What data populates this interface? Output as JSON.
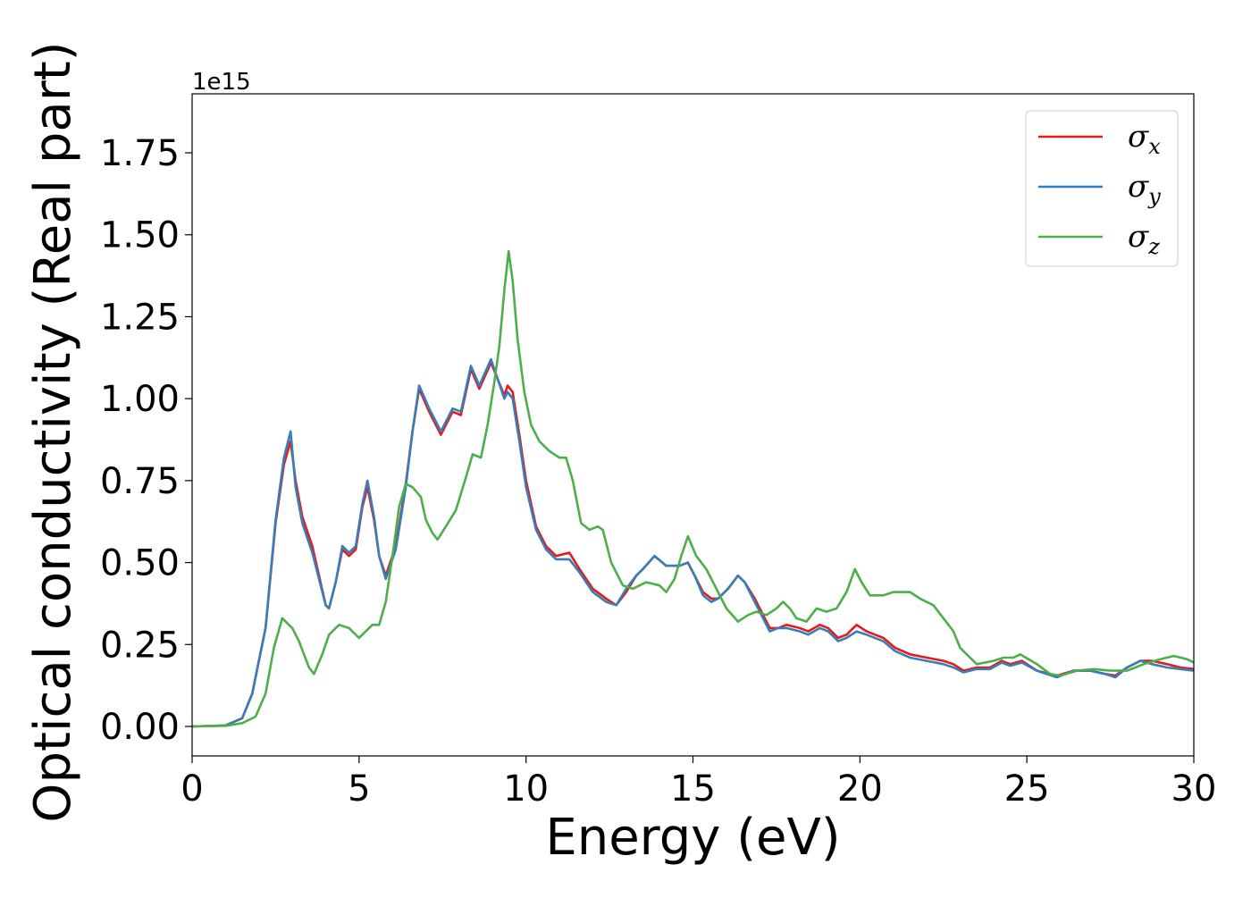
{
  "chart_data": {
    "type": "line",
    "xlabel": "Energy (eV)",
    "ylabel": "Optical conductivity (Real part)",
    "y_offset_text": "1e15",
    "xlim": [
      0,
      30
    ],
    "ylim": [
      -0.09,
      1.93
    ],
    "x_ticks": [
      0,
      5,
      10,
      15,
      20,
      25,
      30
    ],
    "x_tick_labels": [
      "0",
      "5",
      "10",
      "15",
      "20",
      "25",
      "30"
    ],
    "y_ticks": [
      0.0,
      0.25,
      0.5,
      0.75,
      1.0,
      1.25,
      1.5,
      1.75
    ],
    "y_tick_labels": [
      "0.00",
      "0.25",
      "0.50",
      "0.75",
      "1.00",
      "1.25",
      "1.50",
      "1.75"
    ],
    "grid": false,
    "legend_position": "top-right",
    "series": [
      {
        "name": "σx",
        "symbol": "σ",
        "subscript": "x",
        "color": "#e41a1c",
        "points": [
          [
            0,
            0
          ],
          [
            1.0,
            0.003
          ],
          [
            1.5,
            0.025
          ],
          [
            1.8,
            0.1
          ],
          [
            2.0,
            0.2
          ],
          [
            2.2,
            0.3
          ],
          [
            2.5,
            0.62
          ],
          [
            2.75,
            0.8
          ],
          [
            2.95,
            0.87
          ],
          [
            3.1,
            0.75
          ],
          [
            3.3,
            0.64
          ],
          [
            3.6,
            0.55
          ],
          [
            4.0,
            0.37
          ],
          [
            4.1,
            0.36
          ],
          [
            4.3,
            0.44
          ],
          [
            4.5,
            0.54
          ],
          [
            4.7,
            0.52
          ],
          [
            4.9,
            0.54
          ],
          [
            5.1,
            0.67
          ],
          [
            5.25,
            0.73
          ],
          [
            5.45,
            0.63
          ],
          [
            5.6,
            0.52
          ],
          [
            5.8,
            0.46
          ],
          [
            6.1,
            0.55
          ],
          [
            6.4,
            0.74
          ],
          [
            6.6,
            0.9
          ],
          [
            6.8,
            1.03
          ],
          [
            7.1,
            0.96
          ],
          [
            7.45,
            0.89
          ],
          [
            7.8,
            0.96
          ],
          [
            8.05,
            0.95
          ],
          [
            8.35,
            1.09
          ],
          [
            8.6,
            1.03
          ],
          [
            8.95,
            1.11
          ],
          [
            9.15,
            1.06
          ],
          [
            9.35,
            1.01
          ],
          [
            9.45,
            1.04
          ],
          [
            9.6,
            1.02
          ],
          [
            9.8,
            0.89
          ],
          [
            10.0,
            0.75
          ],
          [
            10.3,
            0.61
          ],
          [
            10.6,
            0.55
          ],
          [
            10.9,
            0.52
          ],
          [
            11.3,
            0.53
          ],
          [
            11.6,
            0.48
          ],
          [
            12.0,
            0.42
          ],
          [
            12.4,
            0.39
          ],
          [
            12.7,
            0.37
          ],
          [
            13.0,
            0.41
          ],
          [
            13.3,
            0.46
          ],
          [
            13.5,
            0.48
          ],
          [
            13.85,
            0.52
          ],
          [
            14.2,
            0.49
          ],
          [
            14.6,
            0.49
          ],
          [
            14.85,
            0.5
          ],
          [
            15.05,
            0.46
          ],
          [
            15.3,
            0.41
          ],
          [
            15.55,
            0.39
          ],
          [
            15.75,
            0.39
          ],
          [
            16.05,
            0.42
          ],
          [
            16.35,
            0.46
          ],
          [
            16.55,
            0.44
          ],
          [
            16.85,
            0.39
          ],
          [
            17.1,
            0.34
          ],
          [
            17.3,
            0.3
          ],
          [
            17.55,
            0.3
          ],
          [
            17.8,
            0.31
          ],
          [
            18.2,
            0.3
          ],
          [
            18.45,
            0.29
          ],
          [
            18.8,
            0.31
          ],
          [
            19.05,
            0.3
          ],
          [
            19.35,
            0.27
          ],
          [
            19.6,
            0.28
          ],
          [
            19.9,
            0.31
          ],
          [
            20.2,
            0.29
          ],
          [
            20.7,
            0.27
          ],
          [
            21.05,
            0.24
          ],
          [
            21.5,
            0.22
          ],
          [
            22.0,
            0.21
          ],
          [
            22.5,
            0.2
          ],
          [
            22.8,
            0.19
          ],
          [
            23.1,
            0.17
          ],
          [
            23.5,
            0.18
          ],
          [
            23.9,
            0.18
          ],
          [
            24.25,
            0.2
          ],
          [
            24.5,
            0.19
          ],
          [
            24.85,
            0.2
          ],
          [
            25.3,
            0.17
          ],
          [
            25.9,
            0.155
          ],
          [
            26.4,
            0.17
          ],
          [
            26.9,
            0.17
          ],
          [
            27.35,
            0.16
          ],
          [
            27.65,
            0.155
          ],
          [
            28.0,
            0.18
          ],
          [
            28.4,
            0.2
          ],
          [
            28.75,
            0.2
          ],
          [
            29.2,
            0.19
          ],
          [
            29.6,
            0.18
          ],
          [
            30.0,
            0.175
          ]
        ]
      },
      {
        "name": "σy",
        "symbol": "σ",
        "subscript": "y",
        "color": "#377eb8",
        "points": [
          [
            0,
            0
          ],
          [
            1.0,
            0.003
          ],
          [
            1.5,
            0.025
          ],
          [
            1.8,
            0.1
          ],
          [
            2.0,
            0.2
          ],
          [
            2.2,
            0.3
          ],
          [
            2.5,
            0.63
          ],
          [
            2.75,
            0.82
          ],
          [
            2.95,
            0.9
          ],
          [
            3.1,
            0.73
          ],
          [
            3.3,
            0.62
          ],
          [
            3.6,
            0.53
          ],
          [
            4.0,
            0.37
          ],
          [
            4.1,
            0.36
          ],
          [
            4.3,
            0.44
          ],
          [
            4.5,
            0.55
          ],
          [
            4.7,
            0.53
          ],
          [
            4.9,
            0.55
          ],
          [
            5.1,
            0.68
          ],
          [
            5.25,
            0.75
          ],
          [
            5.45,
            0.64
          ],
          [
            5.6,
            0.52
          ],
          [
            5.8,
            0.45
          ],
          [
            6.1,
            0.54
          ],
          [
            6.4,
            0.73
          ],
          [
            6.6,
            0.9
          ],
          [
            6.8,
            1.04
          ],
          [
            7.1,
            0.97
          ],
          [
            7.45,
            0.9
          ],
          [
            7.8,
            0.97
          ],
          [
            8.05,
            0.96
          ],
          [
            8.35,
            1.1
          ],
          [
            8.6,
            1.04
          ],
          [
            8.95,
            1.12
          ],
          [
            9.15,
            1.06
          ],
          [
            9.35,
            1.0
          ],
          [
            9.45,
            1.02
          ],
          [
            9.6,
            1.0
          ],
          [
            9.8,
            0.87
          ],
          [
            10.0,
            0.73
          ],
          [
            10.3,
            0.6
          ],
          [
            10.6,
            0.54
          ],
          [
            10.9,
            0.51
          ],
          [
            11.3,
            0.51
          ],
          [
            11.6,
            0.47
          ],
          [
            12.0,
            0.41
          ],
          [
            12.4,
            0.38
          ],
          [
            12.7,
            0.37
          ],
          [
            13.0,
            0.42
          ],
          [
            13.3,
            0.46
          ],
          [
            13.5,
            0.48
          ],
          [
            13.85,
            0.52
          ],
          [
            14.2,
            0.49
          ],
          [
            14.6,
            0.49
          ],
          [
            14.85,
            0.5
          ],
          [
            15.05,
            0.46
          ],
          [
            15.3,
            0.4
          ],
          [
            15.55,
            0.38
          ],
          [
            15.75,
            0.39
          ],
          [
            16.05,
            0.42
          ],
          [
            16.35,
            0.46
          ],
          [
            16.55,
            0.44
          ],
          [
            16.85,
            0.38
          ],
          [
            17.1,
            0.33
          ],
          [
            17.3,
            0.29
          ],
          [
            17.55,
            0.3
          ],
          [
            17.8,
            0.3
          ],
          [
            18.2,
            0.29
          ],
          [
            18.45,
            0.28
          ],
          [
            18.8,
            0.3
          ],
          [
            19.05,
            0.29
          ],
          [
            19.35,
            0.26
          ],
          [
            19.6,
            0.27
          ],
          [
            19.9,
            0.29
          ],
          [
            20.2,
            0.28
          ],
          [
            20.7,
            0.26
          ],
          [
            21.05,
            0.23
          ],
          [
            21.5,
            0.21
          ],
          [
            22.0,
            0.2
          ],
          [
            22.5,
            0.19
          ],
          [
            22.8,
            0.18
          ],
          [
            23.1,
            0.165
          ],
          [
            23.5,
            0.175
          ],
          [
            23.9,
            0.175
          ],
          [
            24.25,
            0.195
          ],
          [
            24.5,
            0.185
          ],
          [
            24.85,
            0.195
          ],
          [
            25.3,
            0.17
          ],
          [
            25.9,
            0.15
          ],
          [
            26.4,
            0.17
          ],
          [
            26.9,
            0.17
          ],
          [
            27.35,
            0.16
          ],
          [
            27.65,
            0.15
          ],
          [
            28.0,
            0.18
          ],
          [
            28.4,
            0.2
          ],
          [
            28.75,
            0.19
          ],
          [
            29.2,
            0.18
          ],
          [
            29.6,
            0.175
          ],
          [
            30.0,
            0.17
          ]
        ]
      },
      {
        "name": "σz",
        "symbol": "σ",
        "subscript": "z",
        "color": "#4daf4a",
        "points": [
          [
            0,
            0
          ],
          [
            1.0,
            0.002
          ],
          [
            1.5,
            0.01
          ],
          [
            1.9,
            0.03
          ],
          [
            2.2,
            0.1
          ],
          [
            2.45,
            0.24
          ],
          [
            2.7,
            0.33
          ],
          [
            3.0,
            0.3
          ],
          [
            3.2,
            0.26
          ],
          [
            3.5,
            0.18
          ],
          [
            3.65,
            0.16
          ],
          [
            3.9,
            0.22
          ],
          [
            4.1,
            0.28
          ],
          [
            4.4,
            0.31
          ],
          [
            4.7,
            0.3
          ],
          [
            5.0,
            0.27
          ],
          [
            5.2,
            0.29
          ],
          [
            5.4,
            0.31
          ],
          [
            5.6,
            0.31
          ],
          [
            5.8,
            0.38
          ],
          [
            6.0,
            0.52
          ],
          [
            6.2,
            0.67
          ],
          [
            6.4,
            0.74
          ],
          [
            6.6,
            0.73
          ],
          [
            6.85,
            0.7
          ],
          [
            7.0,
            0.63
          ],
          [
            7.2,
            0.59
          ],
          [
            7.35,
            0.57
          ],
          [
            7.6,
            0.61
          ],
          [
            7.9,
            0.66
          ],
          [
            8.2,
            0.76
          ],
          [
            8.4,
            0.83
          ],
          [
            8.65,
            0.82
          ],
          [
            8.85,
            0.92
          ],
          [
            9.05,
            1.05
          ],
          [
            9.2,
            1.16
          ],
          [
            9.35,
            1.33
          ],
          [
            9.48,
            1.45
          ],
          [
            9.6,
            1.36
          ],
          [
            9.75,
            1.18
          ],
          [
            9.95,
            1.02
          ],
          [
            10.15,
            0.92
          ],
          [
            10.4,
            0.87
          ],
          [
            10.7,
            0.84
          ],
          [
            11.0,
            0.82
          ],
          [
            11.2,
            0.82
          ],
          [
            11.4,
            0.75
          ],
          [
            11.65,
            0.62
          ],
          [
            11.9,
            0.6
          ],
          [
            12.15,
            0.61
          ],
          [
            12.3,
            0.6
          ],
          [
            12.55,
            0.5
          ],
          [
            12.9,
            0.43
          ],
          [
            13.2,
            0.42
          ],
          [
            13.6,
            0.44
          ],
          [
            14.0,
            0.43
          ],
          [
            14.2,
            0.41
          ],
          [
            14.45,
            0.45
          ],
          [
            14.65,
            0.52
          ],
          [
            14.85,
            0.58
          ],
          [
            15.1,
            0.52
          ],
          [
            15.4,
            0.48
          ],
          [
            15.7,
            0.42
          ],
          [
            16.0,
            0.36
          ],
          [
            16.35,
            0.32
          ],
          [
            16.65,
            0.34
          ],
          [
            16.9,
            0.35
          ],
          [
            17.2,
            0.34
          ],
          [
            17.5,
            0.36
          ],
          [
            17.7,
            0.38
          ],
          [
            17.9,
            0.36
          ],
          [
            18.1,
            0.33
          ],
          [
            18.4,
            0.32
          ],
          [
            18.7,
            0.36
          ],
          [
            19.0,
            0.35
          ],
          [
            19.3,
            0.36
          ],
          [
            19.6,
            0.41
          ],
          [
            19.85,
            0.48
          ],
          [
            20.05,
            0.44
          ],
          [
            20.3,
            0.4
          ],
          [
            20.7,
            0.4
          ],
          [
            21.0,
            0.41
          ],
          [
            21.5,
            0.41
          ],
          [
            21.8,
            0.39
          ],
          [
            22.2,
            0.37
          ],
          [
            22.5,
            0.33
          ],
          [
            22.8,
            0.29
          ],
          [
            23.0,
            0.24
          ],
          [
            23.5,
            0.19
          ],
          [
            24.0,
            0.2
          ],
          [
            24.3,
            0.21
          ],
          [
            24.6,
            0.21
          ],
          [
            24.8,
            0.22
          ],
          [
            25.3,
            0.19
          ],
          [
            25.7,
            0.16
          ],
          [
            26.0,
            0.155
          ],
          [
            26.5,
            0.17
          ],
          [
            27.0,
            0.175
          ],
          [
            27.5,
            0.17
          ],
          [
            28.0,
            0.17
          ],
          [
            28.5,
            0.19
          ],
          [
            29.0,
            0.205
          ],
          [
            29.4,
            0.215
          ],
          [
            29.8,
            0.205
          ],
          [
            30.0,
            0.195
          ]
        ]
      }
    ]
  }
}
